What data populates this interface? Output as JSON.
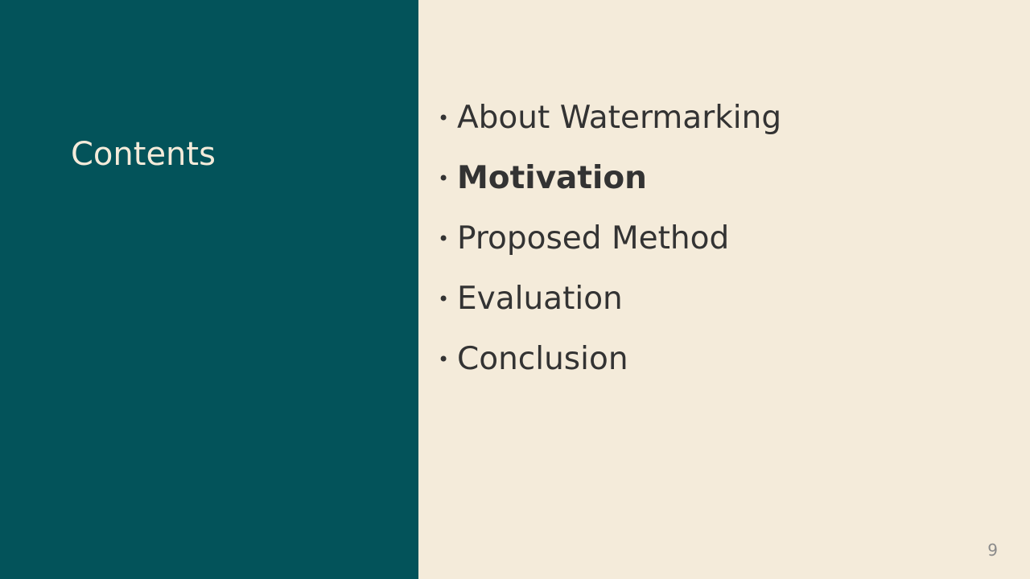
{
  "slide": {
    "title": "Contents",
    "bullet_symbol": "•",
    "items": [
      {
        "label": "About Watermarking",
        "emphasized": false
      },
      {
        "label": "Motivation",
        "emphasized": true
      },
      {
        "label": "Proposed Method",
        "emphasized": false
      },
      {
        "label": "Evaluation",
        "emphasized": false
      },
      {
        "label": "Conclusion",
        "emphasized": false
      }
    ],
    "page_number": "9"
  },
  "colors": {
    "left_panel": "#03535a",
    "background": "#f4ebda",
    "title_text": "#f4ebda",
    "body_text": "#333333",
    "page_number": "#8a8a8a"
  }
}
